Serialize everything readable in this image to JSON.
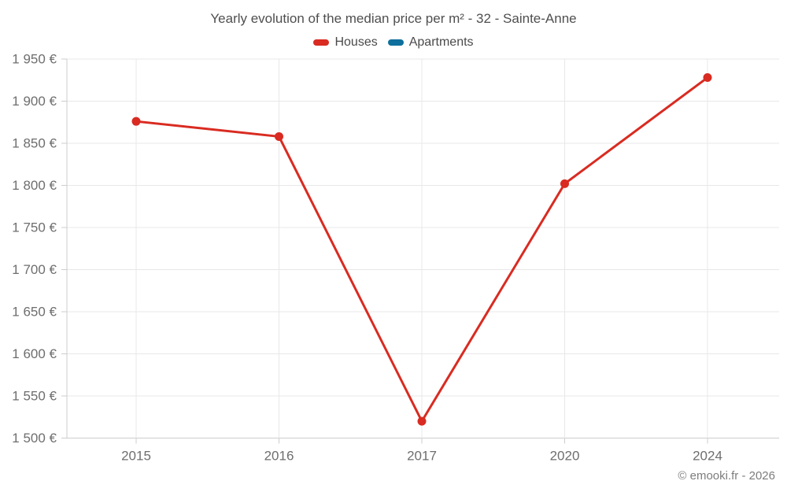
{
  "header": {
    "title": "Yearly evolution of the median price per m² - 32 - Sainte-Anne"
  },
  "legend": [
    {
      "label": "Houses",
      "color": "#d92b21"
    },
    {
      "label": "Apartments",
      "color": "#0e6f9c"
    }
  ],
  "footer": {
    "credit": "© emooki.fr - 2026"
  },
  "chart_data": {
    "type": "line",
    "title": "Yearly evolution of the median price per m² - 32 - Sainte-Anne",
    "categories": [
      "2015",
      "2016",
      "2017",
      "2020",
      "2024"
    ],
    "series": [
      {
        "name": "Houses",
        "color": "#d92b21",
        "values": [
          1876,
          1858,
          1520,
          1802,
          1928
        ]
      },
      {
        "name": "Apartments",
        "color": "#0e6f9c",
        "values": []
      }
    ],
    "xlabel": "",
    "ylabel": "",
    "ylim": [
      1500,
      1950
    ],
    "ytick_step": 50,
    "ytick_suffix": " €",
    "ytick_labels": [
      "1 500 €",
      "1 550 €",
      "1 600 €",
      "1 650 €",
      "1 700 €",
      "1 750 €",
      "1 800 €",
      "1 850 €",
      "1 900 €",
      "1 950 €"
    ],
    "grid": true,
    "legend_position": "top",
    "colors": {
      "gridline": "#e8e8e8",
      "axis": "#cdcdcd",
      "tick_label": "#6e6e6e"
    }
  }
}
